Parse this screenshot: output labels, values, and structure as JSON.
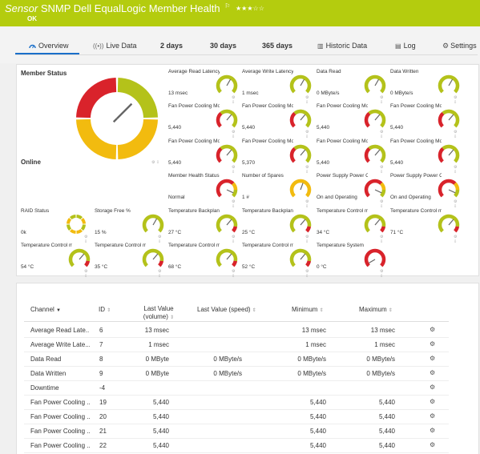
{
  "header": {
    "prefix": "Sensor",
    "title": "SNMP Dell EqualLogic Member Health",
    "flag": "⚐",
    "stars": "★★★☆☆",
    "status": "OK"
  },
  "tabs": [
    {
      "label": "Overview",
      "icon": "gauge-icon",
      "active": true
    },
    {
      "label": "Live Data",
      "icon": "live-data-icon"
    },
    {
      "label": "2  days"
    },
    {
      "label": "30 days"
    },
    {
      "label": "365 days"
    },
    {
      "label": "Historic Data",
      "icon": "chart-icon"
    },
    {
      "label": "Log",
      "icon": "log-icon"
    },
    {
      "label": "Settings",
      "icon": "gear-icon"
    }
  ],
  "member_status": {
    "title": "Member Status",
    "status": "Online"
  },
  "gauges": [
    {
      "label": "Average Read Latency",
      "value": "13 msec",
      "type": "green"
    },
    {
      "label": "Average Write Latency",
      "value": "1 msec",
      "type": "green"
    },
    {
      "label": "Data Read",
      "value": "0 MByte/s",
      "type": "green"
    },
    {
      "label": "Data Written",
      "value": "0 MByte/s",
      "type": "green"
    },
    {
      "label": "Fan Power Cooling Mo...",
      "value": "5,440",
      "type": "redgreen"
    },
    {
      "label": "Fan Power Cooling Mo...",
      "value": "5,440",
      "type": "redgreen"
    },
    {
      "label": "Fan Power Cooling Mo...",
      "value": "5,440",
      "type": "redgreen"
    },
    {
      "label": "Fan Power Cooling Mo...",
      "value": "5,440",
      "type": "redgreen"
    },
    {
      "label": "Fan Power Cooling Mo...",
      "value": "5,440",
      "type": "redgreen"
    },
    {
      "label": "Fan Power Cooling Mo...",
      "value": "5,370",
      "type": "redgreen"
    },
    {
      "label": "Fan Power Cooling Mo...",
      "value": "5,440",
      "type": "redgreen"
    },
    {
      "label": "Fan Power Cooling Mo...",
      "value": "5,440",
      "type": "redgreen"
    },
    {
      "label": "Member Health Status",
      "value": "Normal",
      "type": "status"
    },
    {
      "label": "Number of Spares",
      "value": "1 #",
      "type": "yellow"
    },
    {
      "label": "Power Supply Power C...",
      "value": "On and Operating",
      "type": "status"
    },
    {
      "label": "Power Supply Power C...",
      "value": "On and Operating",
      "type": "status"
    },
    {
      "label": "RAID Status",
      "value": "0k",
      "type": "donut"
    },
    {
      "label": "Storage Free %",
      "value": "15 %",
      "type": "green"
    },
    {
      "label": "Temperature Backplan...",
      "value": "27 °C",
      "type": "greenred"
    },
    {
      "label": "Temperature Backplan...",
      "value": "25 °C",
      "type": "greenred"
    },
    {
      "label": "Temperature Control m...",
      "value": "34 °C",
      "type": "greenred"
    },
    {
      "label": "Temperature Control m...",
      "value": "71 °C",
      "type": "greenred"
    },
    {
      "label": "Temperature Control m...",
      "value": "54 °C",
      "type": "greenred"
    },
    {
      "label": "Temperature Control m...",
      "value": "35 °C",
      "type": "greenred"
    },
    {
      "label": "Temperature Control m...",
      "value": "68 °C",
      "type": "greenred"
    },
    {
      "label": "Temperature Control m...",
      "value": "52 °C",
      "type": "greenred"
    },
    {
      "label": "Temperature System",
      "value": "0 °C",
      "type": "allred"
    }
  ],
  "table": {
    "headers": {
      "channel": "Channel",
      "id": "ID",
      "last_value_volume_1": "Last Value",
      "last_value_volume_2": "(volume)",
      "last_value_speed": "Last Value (speed)",
      "minimum": "Minimum",
      "maximum": "Maximum"
    },
    "rows": [
      {
        "channel": "Average Read Late...",
        "id": "6",
        "vol": "13 msec",
        "speed": "",
        "min": "13 msec",
        "max": "13 msec"
      },
      {
        "channel": "Average Write Late...",
        "id": "7",
        "vol": "1 msec",
        "speed": "",
        "min": "1 msec",
        "max": "1 msec"
      },
      {
        "channel": "Data Read",
        "id": "8",
        "vol": "0 MByte",
        "speed": "0 MByte/s",
        "min": "0 MByte/s",
        "max": "0 MByte/s"
      },
      {
        "channel": "Data Written",
        "id": "9",
        "vol": "0 MByte",
        "speed": "0 MByte/s",
        "min": "0 MByte/s",
        "max": "0 MByte/s"
      },
      {
        "channel": "Downtime",
        "id": "-4",
        "vol": "",
        "speed": "",
        "min": "",
        "max": ""
      },
      {
        "channel": "Fan Power Cooling ...",
        "id": "19",
        "vol": "5,440",
        "speed": "",
        "min": "5,440",
        "max": "5,440"
      },
      {
        "channel": "Fan Power Cooling ...",
        "id": "20",
        "vol": "5,440",
        "speed": "",
        "min": "5,440",
        "max": "5,440"
      },
      {
        "channel": "Fan Power Cooling ...",
        "id": "21",
        "vol": "5,440",
        "speed": "",
        "min": "5,440",
        "max": "5,440"
      },
      {
        "channel": "Fan Power Cooling ...",
        "id": "22",
        "vol": "5,440",
        "speed": "",
        "min": "5,440",
        "max": "5,440"
      }
    ]
  }
}
